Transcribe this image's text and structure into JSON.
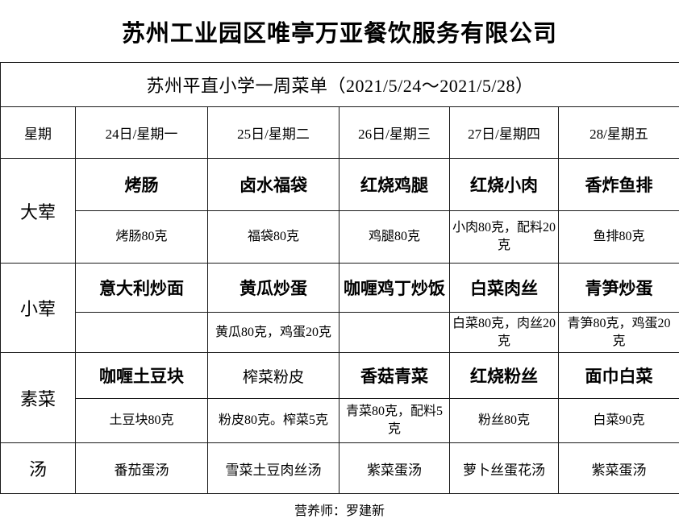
{
  "page": {
    "title": "苏州工业园区唯亭万亚餐饮服务有限公司",
    "subtitle": "苏州平直小学一周菜单（2021/5/24～2021/5/28）",
    "footer": "营养师：罗建新"
  },
  "menu_table": {
    "corner_label": "星期",
    "day_headers": [
      "24日/星期一",
      "25日/星期二",
      "26日/星期三",
      "27日/星期四",
      "28/星期五"
    ],
    "sections": [
      {
        "label": "大荤",
        "dishes": [
          "烤肠",
          "卤水福袋",
          "红烧鸡腿",
          "红烧小肉",
          "香炸鱼排"
        ],
        "dish_bold": [
          true,
          true,
          true,
          true,
          true
        ],
        "portions": [
          "烤肠80克",
          "福袋80克",
          "鸡腿80克",
          "小肉80克，配料20克",
          "鱼排80克"
        ]
      },
      {
        "label": "小荤",
        "dishes": [
          "意大利炒面",
          "黄瓜炒蛋",
          "咖喱鸡丁炒饭",
          "白菜肉丝",
          "青笋炒蛋"
        ],
        "dish_bold": [
          true,
          true,
          true,
          true,
          true
        ],
        "portions": [
          "",
          "黄瓜80克，鸡蛋20克",
          "",
          "白菜80克，肉丝20克",
          "青笋80克，鸡蛋20克"
        ]
      },
      {
        "label": "素菜",
        "dishes": [
          "咖喱土豆块",
          "榨菜粉皮",
          "香菇青菜",
          "红烧粉丝",
          "面巾白菜"
        ],
        "dish_bold": [
          true,
          false,
          true,
          true,
          true
        ],
        "portions": [
          "土豆块80克",
          "粉皮80克。榨菜5克",
          "青菜80克，配料5克",
          "粉丝80克",
          "白菜90克"
        ]
      }
    ],
    "soup_row": {
      "label": "汤",
      "soups": [
        "番茄蛋汤",
        "雪菜土豆肉丝汤",
        "紫菜蛋汤",
        "萝卜丝蛋花汤",
        "紫菜蛋汤"
      ]
    }
  }
}
